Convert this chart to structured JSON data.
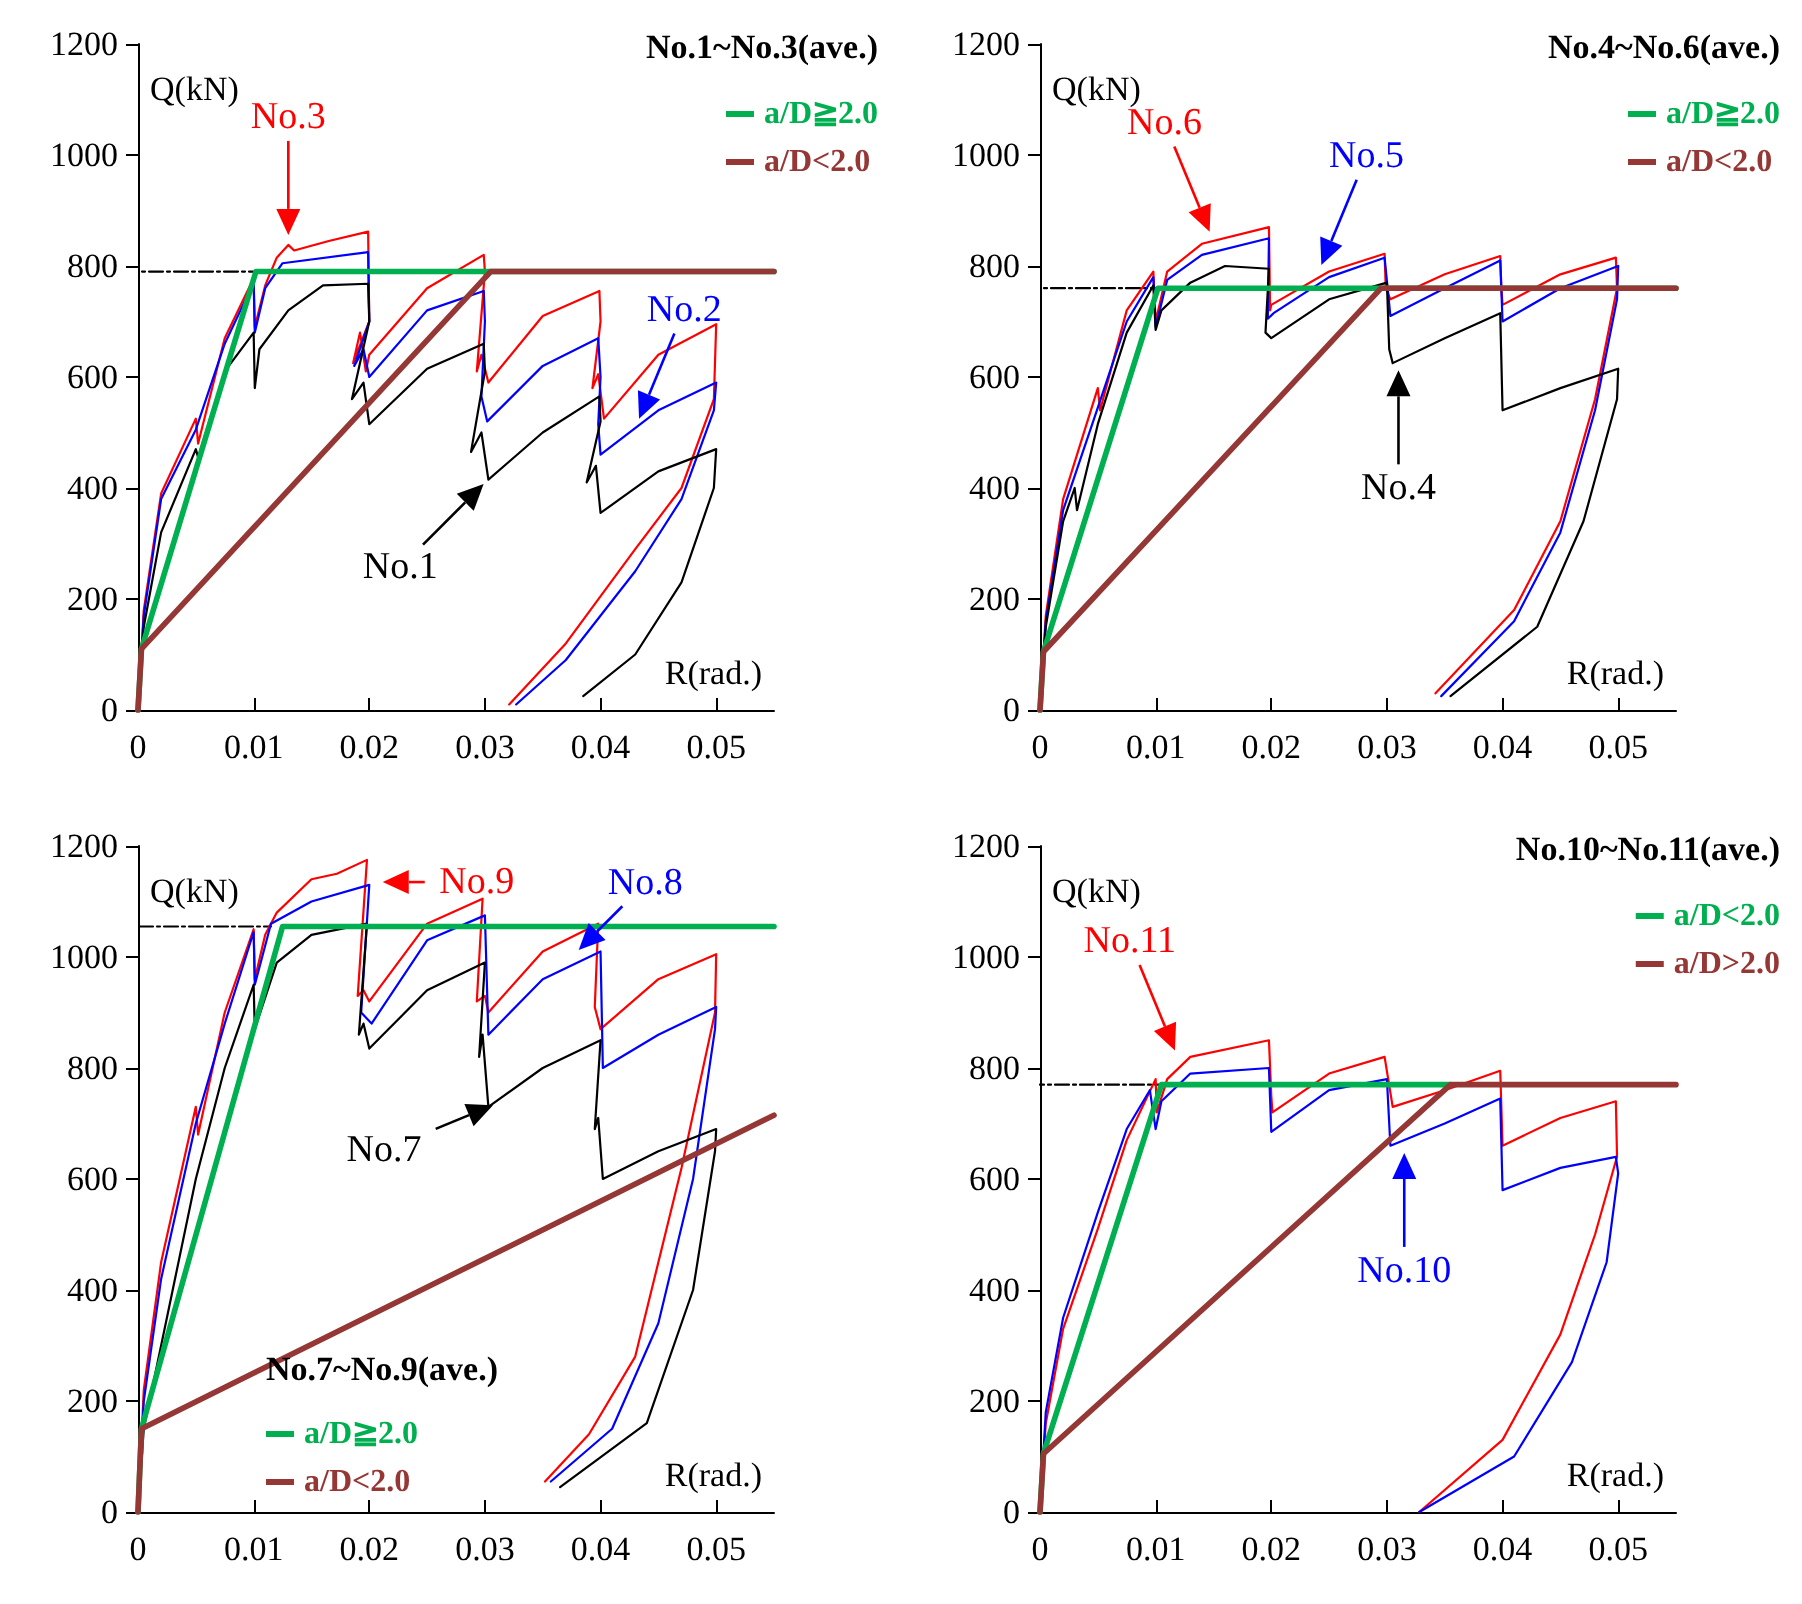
{
  "chart_data": [
    {
      "type": "line",
      "title": "No.1~No.3(ave.)",
      "xlabel": "R(rad.)",
      "ylabel": "Q(kN)",
      "xlim": [
        0,
        0.055
      ],
      "xticks": [
        0,
        0.01,
        0.02,
        0.03,
        0.04,
        0.05
      ],
      "ylim": [
        0,
        1200
      ],
      "yticks": [
        0,
        200,
        400,
        600,
        800,
        1000,
        1200
      ],
      "grid": false,
      "legend": "top right",
      "marker": "none",
      "series": [
        {
          "color": "#000000",
          "line_style": "dashed",
          "x": [
            0,
            0.0102
          ],
          "values": [
            790,
            790
          ]
        },
        {
          "color": "#ff0000",
          "x": [
            0,
            0.0005,
            0.002,
            0.004,
            0.005,
            0.0052,
            0.0075,
            0.01,
            0.0101,
            0.011,
            0.012,
            0.013,
            0.0135,
            0.0165,
            0.0199,
            0.02,
            0.0186,
            0.0192,
            0.0197,
            0.02,
            0.025,
            0.0299,
            0.03,
            0.0293,
            0.0297,
            0.0303,
            0.035,
            0.0399,
            0.04,
            0.0393,
            0.0398,
            0.0403,
            0.045,
            0.05,
            0.0498,
            0.047,
            0.043,
            0.037,
            0.0321
          ],
          "values": [
            0,
            180,
            390,
            480,
            525,
            480,
            670,
            778,
            690,
            765,
            815,
            838,
            828,
            845,
            862,
            700,
            625,
            680,
            610,
            640,
            760,
            820,
            790,
            610,
            640,
            590,
            710,
            755,
            700,
            580,
            605,
            525,
            640,
            695,
            560,
            400,
            290,
            120,
            10
          ]
        },
        {
          "color": "#0000ff",
          "x": [
            0,
            0.0005,
            0.002,
            0.005,
            0.0075,
            0.01,
            0.0101,
            0.011,
            0.0125,
            0.0199,
            0.02,
            0.0187,
            0.0195,
            0.02,
            0.025,
            0.0299,
            0.03,
            0.0297,
            0.0302,
            0.035,
            0.0398,
            0.04,
            0.0398,
            0.04,
            0.045,
            0.05,
            0.0498,
            0.047,
            0.043,
            0.037,
            0.0327
          ],
          "values": [
            0,
            170,
            380,
            505,
            660,
            770,
            680,
            760,
            805,
            825,
            700,
            620,
            650,
            600,
            720,
            755,
            700,
            565,
            520,
            620,
            670,
            600,
            515,
            460,
            540,
            590,
            540,
            380,
            250,
            90,
            10
          ]
        },
        {
          "color": "#000000",
          "x": [
            0,
            0.0005,
            0.002,
            0.005,
            0.0052,
            0.0075,
            0.01,
            0.0101,
            0.0105,
            0.013,
            0.016,
            0.0199,
            0.02,
            0.0185,
            0.0195,
            0.02,
            0.025,
            0.0299,
            0.03,
            0.0288,
            0.0297,
            0.0303,
            0.035,
            0.0399,
            0.04,
            0.0388,
            0.0396,
            0.04,
            0.045,
            0.05,
            0.0498,
            0.047,
            0.043,
            0.0385
          ],
          "values": [
            0,
            150,
            320,
            470,
            455,
            610,
            680,
            580,
            650,
            720,
            765,
            768,
            700,
            560,
            590,
            515,
            615,
            660,
            610,
            465,
            500,
            415,
            500,
            565,
            520,
            410,
            440,
            355,
            430,
            470,
            400,
            230,
            100,
            25
          ]
        },
        {
          "name": "a/D≧2.0",
          "color": "#00b050",
          "x": [
            0,
            0.0003,
            0.0102,
            0.055
          ],
          "values": [
            0,
            110,
            790,
            790
          ]
        },
        {
          "name": "a/D<2.0",
          "color": "#953735",
          "x": [
            0,
            0.0003,
            0.0305,
            0.055
          ],
          "values": [
            0,
            110,
            790,
            790
          ]
        }
      ],
      "annotations": [
        {
          "text": "No.3",
          "x": 0.013,
          "y": 838
        },
        {
          "text": "No.2",
          "x": 0.043,
          "y": 508
        },
        {
          "text": "No.1",
          "x": 0.0305,
          "y": 420
        }
      ]
    },
    {
      "type": "line",
      "title": "No.4~No.6(ave.)",
      "xlabel": "R(rad.)",
      "ylabel": "Q(kN)",
      "xlim": [
        0,
        0.055
      ],
      "xticks": [
        0,
        0.01,
        0.02,
        0.03,
        0.04,
        0.05
      ],
      "ylim": [
        0,
        1200
      ],
      "yticks": [
        0,
        200,
        400,
        600,
        800,
        1000,
        1200
      ],
      "grid": false,
      "legend": "top right",
      "marker": "none",
      "series": [
        {
          "color": "#000000",
          "line_style": "dashed",
          "x": [
            0,
            0.0102
          ],
          "values": [
            760,
            760
          ]
        },
        {
          "color": "#ff0000",
          "x": [
            0,
            0.0005,
            0.002,
            0.005,
            0.0052,
            0.0075,
            0.0098,
            0.01,
            0.011,
            0.014,
            0.0198,
            0.0199,
            0.02,
            0.025,
            0.0298,
            0.0299,
            0.0303,
            0.035,
            0.0398,
            0.0399,
            0.04,
            0.045,
            0.0498,
            0.0499,
            0.048,
            0.045,
            0.041,
            0.0342
          ],
          "values": [
            0,
            170,
            380,
            580,
            540,
            720,
            790,
            700,
            790,
            840,
            870,
            720,
            730,
            790,
            822,
            760,
            740,
            785,
            818,
            760,
            730,
            785,
            815,
            760,
            560,
            340,
            180,
            30
          ]
        },
        {
          "color": "#0000ff",
          "x": [
            0,
            0.0005,
            0.002,
            0.005,
            0.0075,
            0.0098,
            0.01,
            0.011,
            0.014,
            0.0198,
            0.0197,
            0.0202,
            0.025,
            0.0298,
            0.0303,
            0.035,
            0.0398,
            0.04,
            0.045,
            0.05,
            0.0499,
            0.048,
            0.045,
            0.041,
            0.0347
          ],
          "values": [
            0,
            160,
            360,
            545,
            700,
            780,
            690,
            775,
            820,
            850,
            705,
            715,
            780,
            815,
            710,
            760,
            810,
            700,
            760,
            800,
            740,
            540,
            320,
            160,
            25
          ]
        },
        {
          "color": "#000000",
          "x": [
            0,
            0.0005,
            0.002,
            0.003,
            0.0032,
            0.005,
            0.0075,
            0.0098,
            0.01,
            0.0105,
            0.013,
            0.016,
            0.0198,
            0.0195,
            0.02,
            0.025,
            0.03,
            0.0302,
            0.0305,
            0.035,
            0.0398,
            0.04,
            0.045,
            0.05,
            0.0499,
            0.047,
            0.043,
            0.0355
          ],
          "values": [
            0,
            150,
            340,
            400,
            360,
            515,
            680,
            765,
            685,
            720,
            770,
            800,
            795,
            680,
            670,
            740,
            770,
            650,
            625,
            670,
            715,
            540,
            580,
            615,
            560,
            340,
            150,
            25
          ]
        },
        {
          "name": "a/D≧2.0",
          "color": "#00b050",
          "x": [
            0,
            0.0003,
            0.0102,
            0.055
          ],
          "values": [
            0,
            105,
            760,
            760
          ]
        },
        {
          "name": "a/D<2.0",
          "color": "#953735",
          "x": [
            0,
            0.0003,
            0.0295,
            0.055
          ],
          "values": [
            0,
            105,
            760,
            760
          ]
        }
      ],
      "annotations": [
        {
          "text": "No.6",
          "x": 0.015,
          "y": 845
        },
        {
          "text": "No.5",
          "x": 0.024,
          "y": 785
        },
        {
          "text": "No.4",
          "x": 0.031,
          "y": 630
        }
      ]
    },
    {
      "type": "line",
      "title": "No.7~No.9(ave.)",
      "xlabel": "R(rad.)",
      "ylabel": "Q(kN)",
      "xlim": [
        0,
        0.055
      ],
      "xticks": [
        0,
        0.01,
        0.02,
        0.03,
        0.04,
        0.05
      ],
      "ylim": [
        0,
        1200
      ],
      "yticks": [
        0,
        200,
        400,
        600,
        800,
        1000,
        1200
      ],
      "grid": false,
      "legend": "bottom left",
      "marker": "none",
      "series": [
        {
          "color": "#000000",
          "line_style": "dashed",
          "x": [
            0,
            0.0115
          ],
          "values": [
            1055,
            1055
          ]
        },
        {
          "color": "#ff0000",
          "x": [
            0,
            0.0005,
            0.002,
            0.005,
            0.0052,
            0.0075,
            0.01,
            0.0101,
            0.011,
            0.012,
            0.015,
            0.0172,
            0.0198,
            0.019,
            0.0195,
            0.02,
            0.025,
            0.0298,
            0.0293,
            0.03,
            0.0303,
            0.035,
            0.0398,
            0.0395,
            0.04,
            0.045,
            0.05,
            0.0499,
            0.047,
            0.043,
            0.039,
            0.0352
          ],
          "values": [
            0,
            220,
            450,
            730,
            680,
            900,
            1050,
            960,
            1040,
            1080,
            1140,
            1150,
            1175,
            930,
            940,
            920,
            1060,
            1105,
            920,
            930,
            900,
            1010,
            1060,
            910,
            870,
            960,
            1005,
            900,
            620,
            280,
            140,
            55
          ]
        },
        {
          "color": "#0000ff",
          "x": [
            0,
            0.0005,
            0.002,
            0.005,
            0.0075,
            0.01,
            0.0101,
            0.0115,
            0.015,
            0.02,
            0.0193,
            0.0202,
            0.025,
            0.03,
            0.0303,
            0.035,
            0.04,
            0.0402,
            0.045,
            0.05,
            0.0499,
            0.048,
            0.045,
            0.041,
            0.0357
          ],
          "values": [
            0,
            200,
            420,
            700,
            880,
            1045,
            950,
            1060,
            1100,
            1130,
            900,
            880,
            1030,
            1075,
            860,
            960,
            1010,
            800,
            860,
            910,
            870,
            600,
            340,
            150,
            55
          ]
        },
        {
          "color": "#000000",
          "x": [
            0,
            0.0005,
            0.002,
            0.005,
            0.0075,
            0.01,
            0.0101,
            0.012,
            0.015,
            0.0198,
            0.0191,
            0.0195,
            0.02,
            0.025,
            0.03,
            0.0295,
            0.0298,
            0.0303,
            0.035,
            0.04,
            0.0395,
            0.0398,
            0.0402,
            0.045,
            0.05,
            0.0499,
            0.048,
            0.044,
            0.0365
          ],
          "values": [
            0,
            150,
            300,
            600,
            800,
            950,
            870,
            990,
            1040,
            1060,
            860,
            880,
            835,
            940,
            990,
            820,
            860,
            730,
            800,
            850,
            690,
            710,
            600,
            650,
            690,
            650,
            400,
            160,
            45
          ]
        },
        {
          "name": "a/D≧2.0",
          "color": "#00b050",
          "x": [
            0,
            0.0003,
            0.0125,
            0.055
          ],
          "values": [
            0,
            150,
            1055,
            1055
          ]
        },
        {
          "name": "a/D<2.0",
          "color": "#953735",
          "x": [
            0,
            0.0003,
            0.055
          ],
          "values": [
            0,
            150,
            715
          ]
        }
      ],
      "annotations": [
        {
          "text": "No.9",
          "x": 0.0203,
          "y": 1135
        },
        {
          "text": "No.8",
          "x": 0.0375,
          "y": 1000
        },
        {
          "text": "No.7",
          "x": 0.0315,
          "y": 740
        }
      ]
    },
    {
      "type": "line",
      "title": "No.10~No.11(ave.)",
      "xlabel": "R(rad.)",
      "ylabel": "Q(kN)",
      "xlim": [
        0,
        0.055
      ],
      "xticks": [
        0,
        0.01,
        0.02,
        0.03,
        0.04,
        0.05
      ],
      "ylim": [
        0,
        1200
      ],
      "yticks": [
        0,
        200,
        400,
        600,
        800,
        1000,
        1200
      ],
      "grid": false,
      "legend": "top right",
      "marker": "none",
      "series": [
        {
          "color": "#000000",
          "line_style": "dashed",
          "x": [
            0,
            0.0105
          ],
          "values": [
            770,
            770
          ]
        },
        {
          "color": "#ff0000",
          "x": [
            0,
            0.0005,
            0.002,
            0.005,
            0.0075,
            0.01,
            0.0101,
            0.011,
            0.013,
            0.0198,
            0.02,
            0.0201,
            0.025,
            0.0298,
            0.0305,
            0.035,
            0.0398,
            0.04,
            0.045,
            0.0498,
            0.0499,
            0.048,
            0.045,
            0.04,
            0.0328
          ],
          "values": [
            0,
            160,
            330,
            510,
            670,
            780,
            720,
            780,
            820,
            850,
            750,
            720,
            790,
            820,
            730,
            760,
            795,
            660,
            710,
            740,
            640,
            500,
            320,
            130,
            0
          ]
        },
        {
          "color": "#0000ff",
          "x": [
            0,
            0.0005,
            0.002,
            0.005,
            0.0075,
            0.0095,
            0.01,
            0.0105,
            0.013,
            0.0198,
            0.02,
            0.025,
            0.03,
            0.0303,
            0.035,
            0.0398,
            0.04,
            0.045,
            0.0498,
            0.05,
            0.049,
            0.046,
            0.041,
            0.0328
          ],
          "values": [
            0,
            180,
            350,
            540,
            690,
            760,
            690,
            740,
            790,
            800,
            685,
            760,
            780,
            660,
            700,
            745,
            580,
            620,
            640,
            610,
            450,
            270,
            100,
            0
          ]
        },
        {
          "name": "a/D<2.0",
          "color": "#00b050",
          "x": [
            0,
            0.0003,
            0.0105,
            0.0355
          ],
          "values": [
            0,
            105,
            770,
            770
          ]
        },
        {
          "name": "a/D>2.0",
          "color": "#953735",
          "x": [
            0,
            0.0003,
            0.0355,
            0.055
          ],
          "values": [
            0,
            105,
            770,
            770
          ]
        }
      ],
      "annotations": [
        {
          "text": "No.11",
          "x": 0.012,
          "y": 815
        },
        {
          "text": "No.10",
          "x": 0.0315,
          "y": 665
        }
      ]
    }
  ]
}
